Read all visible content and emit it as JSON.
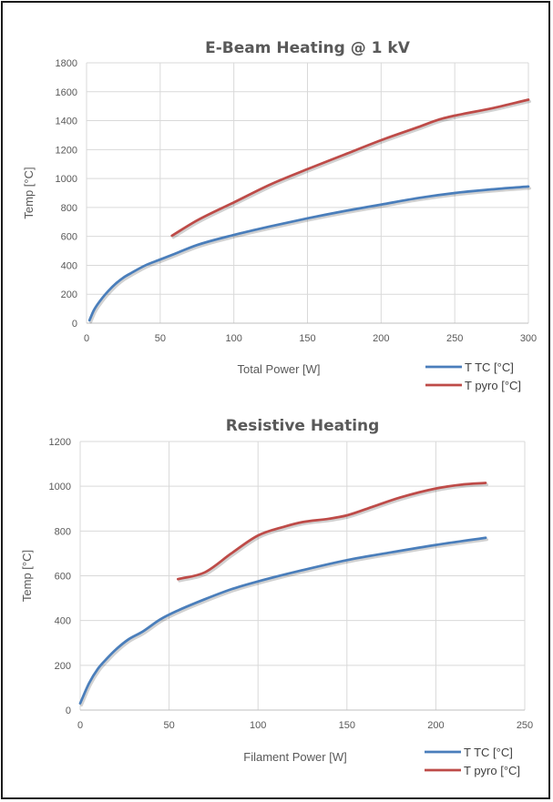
{
  "chart_data": [
    {
      "type": "line",
      "title": "E-Beam Heating @ 1 kV",
      "xlabel": "Total Power [W]",
      "ylabel": "Temp [°C]",
      "xlim": [
        0,
        300
      ],
      "ylim": [
        0,
        1800
      ],
      "x_ticks": [
        "0",
        "50",
        "100",
        "150",
        "200",
        "250",
        "300"
      ],
      "y_ticks": [
        "0",
        "200",
        "400",
        "600",
        "800",
        "1000",
        "1200",
        "1400",
        "1600",
        "1800"
      ],
      "grid": true,
      "legend_position": "bottom-right",
      "series": [
        {
          "name": "T TC [°C]",
          "color": "#4a7ebb",
          "points": [
            [
              2,
              20
            ],
            [
              5,
              90
            ],
            [
              10,
              165
            ],
            [
              15,
              225
            ],
            [
              20,
              275
            ],
            [
              25,
              315
            ],
            [
              30,
              345
            ],
            [
              40,
              400
            ],
            [
              50,
              440
            ],
            [
              60,
              480
            ],
            [
              75,
              540
            ],
            [
              100,
              610
            ],
            [
              125,
              670
            ],
            [
              150,
              725
            ],
            [
              175,
              775
            ],
            [
              200,
              820
            ],
            [
              225,
              865
            ],
            [
              250,
              900
            ],
            [
              275,
              925
            ],
            [
              300,
              945
            ]
          ]
        },
        {
          "name": "T pyro [°C]",
          "color": "#be4b48",
          "points": [
            [
              58,
              605
            ],
            [
              75,
              710
            ],
            [
              100,
              835
            ],
            [
              125,
              960
            ],
            [
              150,
              1065
            ],
            [
              175,
              1165
            ],
            [
              200,
              1265
            ],
            [
              225,
              1355
            ],
            [
              240,
              1410
            ],
            [
              250,
              1435
            ],
            [
              275,
              1485
            ],
            [
              300,
              1545
            ]
          ]
        }
      ]
    },
    {
      "type": "line",
      "title": "Resistive Heating",
      "xlabel": "Filament Power [W]",
      "ylabel": "Temp [°C]",
      "xlim": [
        0,
        250
      ],
      "ylim": [
        0,
        1200
      ],
      "x_ticks": [
        "0",
        "50",
        "100",
        "150",
        "200",
        "250"
      ],
      "y_ticks": [
        "0",
        "200",
        "400",
        "600",
        "800",
        "1000",
        "1200"
      ],
      "grid": true,
      "legend_position": "bottom-right",
      "series": [
        {
          "name": "T TC [°C]",
          "color": "#4a7ebb",
          "points": [
            [
              0,
              30
            ],
            [
              5,
              120
            ],
            [
              10,
              185
            ],
            [
              15,
              230
            ],
            [
              20,
              270
            ],
            [
              27,
              315
            ],
            [
              35,
              350
            ],
            [
              45,
              405
            ],
            [
              55,
              445
            ],
            [
              70,
              495
            ],
            [
              85,
              540
            ],
            [
              100,
              575
            ],
            [
              125,
              625
            ],
            [
              150,
              670
            ],
            [
              175,
              705
            ],
            [
              200,
              738
            ],
            [
              228,
              770
            ]
          ]
        },
        {
          "name": "T pyro [°C]",
          "color": "#be4b48",
          "points": [
            [
              55,
              585
            ],
            [
              70,
              615
            ],
            [
              85,
              700
            ],
            [
              100,
              780
            ],
            [
              115,
              820
            ],
            [
              125,
              840
            ],
            [
              140,
              855
            ],
            [
              150,
              870
            ],
            [
              165,
              910
            ],
            [
              180,
              950
            ],
            [
              200,
              990
            ],
            [
              215,
              1008
            ],
            [
              228,
              1015
            ]
          ]
        }
      ]
    }
  ]
}
